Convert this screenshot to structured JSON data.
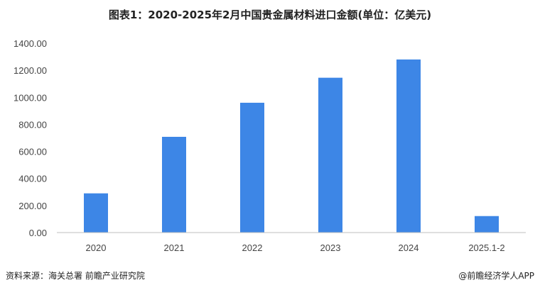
{
  "footer": {
    "source": "资料来源：海关总署 前瞻产业研究院",
    "credit": "@前瞻经济学人APP"
  },
  "colors": {
    "bar": "#3d86e6",
    "axis": "#bfbfbf",
    "text": "#444444"
  },
  "chart_data": {
    "type": "bar",
    "title": "图表1：2020-2025年2月中国贵金属材料进口金额(单位：亿美元)",
    "xlabel": "",
    "ylabel": "",
    "categories": [
      "2020",
      "2021",
      "2022",
      "2023",
      "2024",
      "2025.1-2"
    ],
    "values": [
      290,
      708,
      960,
      1145,
      1280,
      122
    ],
    "ylim": [
      0,
      1400
    ],
    "yticks": [
      "0.00",
      "200.00",
      "400.00",
      "600.00",
      "800.00",
      "1000.00",
      "1200.00",
      "1400.00"
    ],
    "grid": false,
    "legend": "none"
  }
}
